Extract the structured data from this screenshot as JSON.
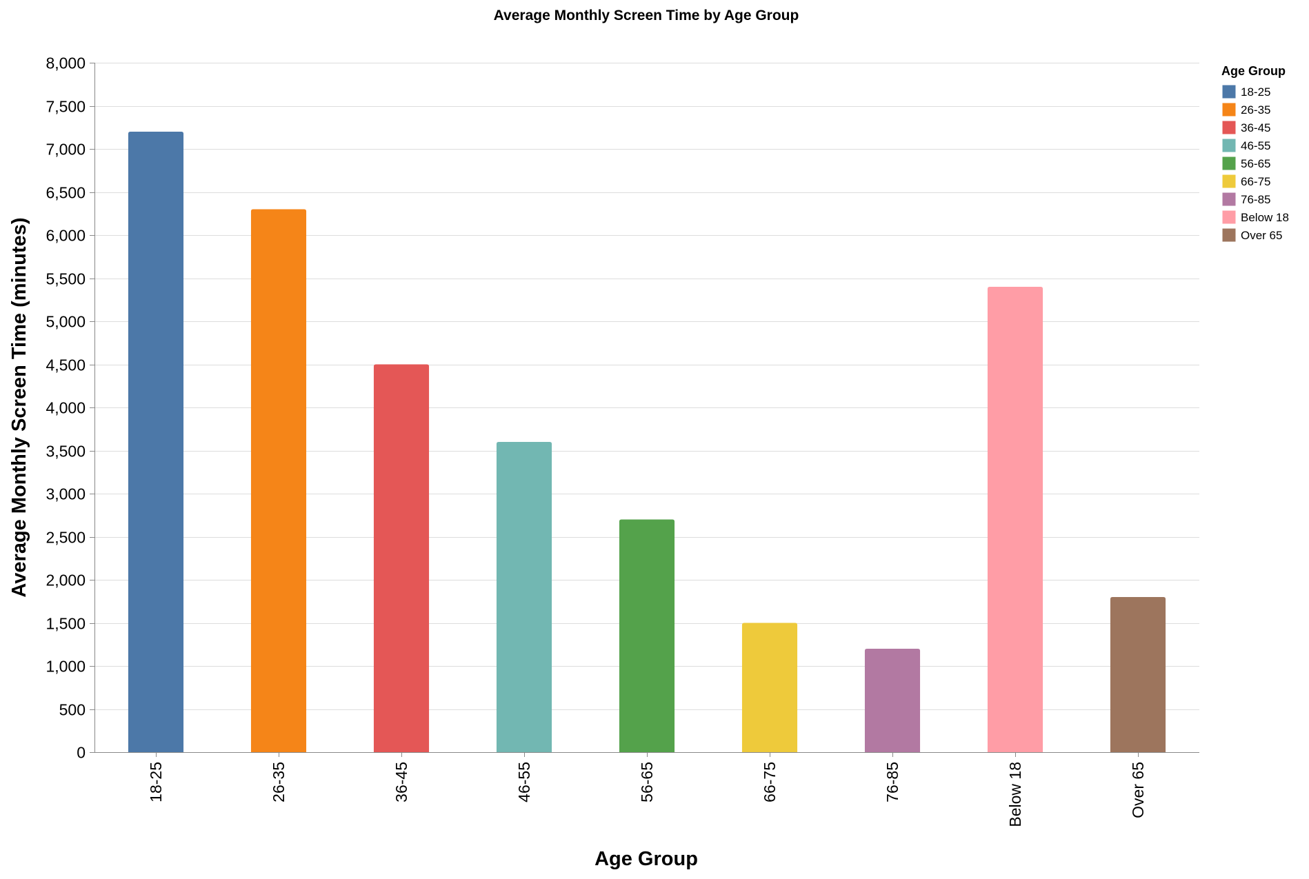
{
  "chart_data": {
    "type": "bar",
    "title": "Average Monthly Screen Time by Age Group",
    "xlabel": "Age Group",
    "ylabel": "Average Monthly Screen Time (minutes)",
    "categories": [
      "18-25",
      "26-35",
      "36-45",
      "46-55",
      "56-65",
      "66-75",
      "76-85",
      "Below 18",
      "Over 65"
    ],
    "values": [
      7200,
      6300,
      4500,
      3600,
      2700,
      1500,
      1200,
      5400,
      1800
    ],
    "colors": [
      "#4c78a8",
      "#f58518",
      "#e45756",
      "#72b7b2",
      "#54a24b",
      "#eeca3b",
      "#b279a2",
      "#ff9da6",
      "#9d755d"
    ],
    "ylim": [
      0,
      8000
    ],
    "yticks": [
      0,
      500,
      1000,
      1500,
      2000,
      2500,
      3000,
      3500,
      4000,
      4500,
      5000,
      5500,
      6000,
      6500,
      7000,
      7500,
      8000
    ],
    "grid": true,
    "legend": {
      "title": "Age Group",
      "position": "right",
      "entries": [
        "18-25",
        "26-35",
        "36-45",
        "46-55",
        "56-65",
        "66-75",
        "76-85",
        "Below 18",
        "Over 65"
      ]
    }
  }
}
